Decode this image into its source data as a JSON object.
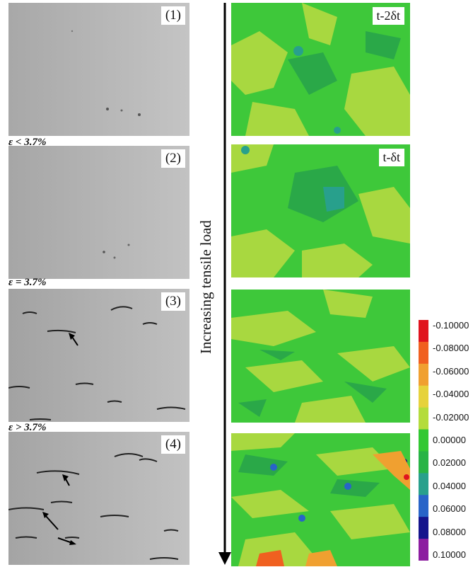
{
  "micrographs": [
    {
      "label": "(1)"
    },
    {
      "label": "(2)"
    },
    {
      "label": "(3)"
    },
    {
      "label": "(4)"
    }
  ],
  "strain_labels": [
    "ε < 3.7%",
    "ε = 3.7%",
    "ε > 3.7%"
  ],
  "time_labels": [
    "t-2δt",
    "t-δt"
  ],
  "axis_label": "Increasing tensile load",
  "colorbar": {
    "ticks": [
      "-0.10000",
      "-0.08000",
      "-0.06000",
      "-0.04000",
      "-0.02000",
      "0.00000",
      "0.02000",
      "0.04000",
      "0.06000",
      "0.08000",
      "0.10000"
    ],
    "colors": [
      "#e0141e",
      "#f06020",
      "#f0a030",
      "#e6d23c",
      "#b4dc3c",
      "#32c832",
      "#28b446",
      "#28a08c",
      "#2864c8",
      "#14148c",
      "#8c1ea0"
    ]
  },
  "colors": {
    "micrograph_bg": "#b9b9b9",
    "map_green": "#3ec83a",
    "map_yellow_green": "#a8d840",
    "map_dark_green": "#2aa848"
  }
}
